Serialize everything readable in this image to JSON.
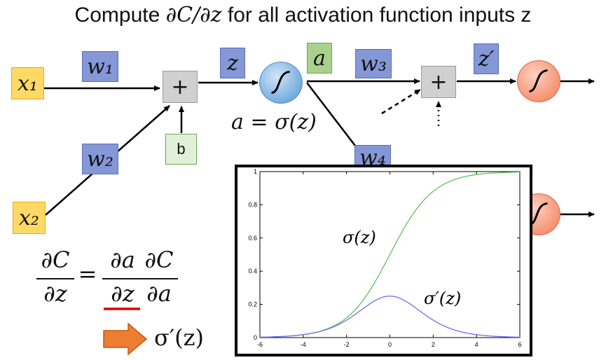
{
  "title": {
    "prefix": "Compute ",
    "expr": "∂C/∂z",
    "suffix": " for all activation function inputs z"
  },
  "nodes": {
    "x1": "x₁",
    "x2": "x₂",
    "w1": "w₁",
    "w2": "w₂",
    "w3": "w₃",
    "w4": "w₄",
    "b": "b",
    "z": "z",
    "a": "a",
    "z_prime": "z′",
    "plus": "+"
  },
  "equation_a": "a = σ(z)",
  "chain_rule": {
    "lhs_num": "∂C",
    "lhs_den": "∂z",
    "equals": "=",
    "r1_num": "∂a",
    "r1_den": "∂z",
    "r2_num": "∂C",
    "r2_den": "∂a"
  },
  "result": "σ′(z)",
  "colors": {
    "input": "#ffd966",
    "weight": "#8497d6",
    "activation": "#a9d18e",
    "bias": "#e2f0d9",
    "sum": "#d0d0d0",
    "neuron_blue": "#6fa8dc",
    "neuron_orange": "#f3906e",
    "arrow": "#ed7d31",
    "underline": "#e00000",
    "sigmoid_curve": "#5fbf5f",
    "derivative_curve": "#6f6fef"
  },
  "chart_data": {
    "type": "line",
    "x": [
      -6,
      -5,
      -4,
      -3,
      -2,
      -1,
      0,
      1,
      2,
      3,
      4,
      5,
      6
    ],
    "series": [
      {
        "name": "σ(z)",
        "values": [
          0.002,
          0.007,
          0.018,
          0.047,
          0.119,
          0.269,
          0.5,
          0.731,
          0.881,
          0.953,
          0.982,
          0.993,
          0.998
        ]
      },
      {
        "name": "σ′(z)",
        "values": [
          0.002,
          0.007,
          0.018,
          0.045,
          0.105,
          0.197,
          0.25,
          0.197,
          0.105,
          0.045,
          0.018,
          0.007,
          0.002
        ]
      }
    ],
    "xticks": [
      "-6",
      "-4",
      "-2",
      "0",
      "2",
      "4",
      "6"
    ],
    "yticks": [
      "0",
      "0.2",
      "0.4",
      "0.6",
      "0.8",
      "1"
    ],
    "xlim": [
      -6,
      6
    ],
    "ylim": [
      0,
      1
    ],
    "labels": {
      "sigma": "σ(z)",
      "sigma_prime": "σ′(z)"
    }
  }
}
